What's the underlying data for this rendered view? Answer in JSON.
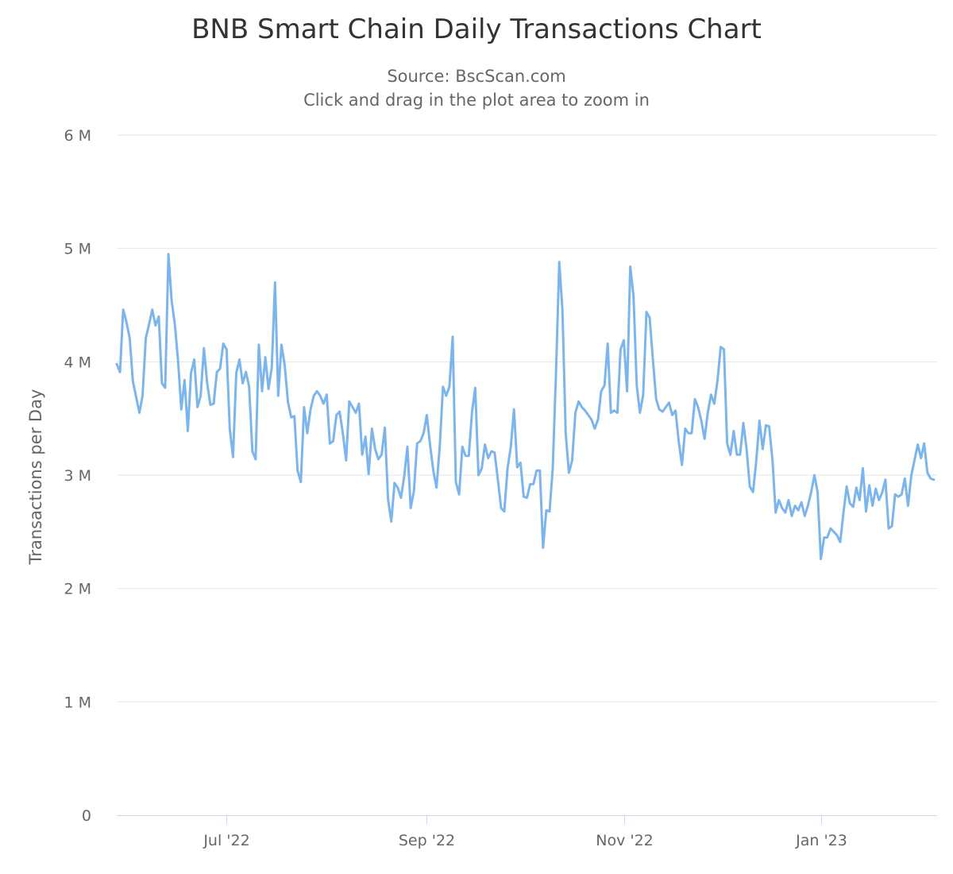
{
  "chart_data": {
    "type": "line",
    "title": "BNB Smart Chain Daily Transactions Chart",
    "subtitle": "Source: BscScan.com",
    "subtitle2": "Click and drag in the plot area to zoom in",
    "xlabel": "",
    "ylabel": "Transactions per Day",
    "ylim": [
      0,
      6000000
    ],
    "y_ticks": [
      {
        "value": 0,
        "label": "0"
      },
      {
        "value": 1000000,
        "label": "1 M"
      },
      {
        "value": 2000000,
        "label": "2 M"
      },
      {
        "value": 3000000,
        "label": "3 M"
      },
      {
        "value": 4000000,
        "label": "4 M"
      },
      {
        "value": 5000000,
        "label": "5 M"
      },
      {
        "value": 6000000,
        "label": "6 M"
      }
    ],
    "x_ticks": [
      {
        "date": "2022-07-01",
        "label": "Jul '22"
      },
      {
        "date": "2022-09-01",
        "label": "Sep '22"
      },
      {
        "date": "2022-11-01",
        "label": "Nov '22"
      },
      {
        "date": "2023-01-01",
        "label": "Jan '23"
      }
    ],
    "grid": true,
    "line_color": "#7cb5ec",
    "start_date": "2022-05-28",
    "interval": "daily",
    "series": [
      {
        "name": "Transactions per Day",
        "unit": "M",
        "values": [
          3.98,
          3.91,
          4.46,
          4.35,
          4.21,
          3.83,
          3.69,
          3.55,
          3.7,
          4.21,
          4.33,
          4.46,
          4.32,
          4.4,
          3.81,
          3.77,
          4.95,
          4.54,
          4.33,
          4.0,
          3.58,
          3.84,
          3.39,
          3.9,
          4.02,
          3.6,
          3.7,
          4.12,
          3.81,
          3.62,
          3.63,
          3.91,
          3.94,
          4.16,
          4.11,
          3.41,
          3.16,
          3.9,
          4.02,
          3.81,
          3.91,
          3.78,
          3.21,
          3.14,
          4.15,
          3.74,
          4.04,
          3.76,
          3.95,
          4.7,
          3.7,
          4.15,
          3.97,
          3.65,
          3.51,
          3.52,
          3.04,
          2.94,
          3.6,
          3.37,
          3.58,
          3.7,
          3.74,
          3.7,
          3.63,
          3.71,
          3.28,
          3.3,
          3.53,
          3.56,
          3.37,
          3.13,
          3.65,
          3.6,
          3.55,
          3.63,
          3.18,
          3.34,
          3.01,
          3.41,
          3.23,
          3.14,
          3.18,
          3.42,
          2.79,
          2.59,
          2.93,
          2.89,
          2.8,
          2.99,
          3.25,
          2.71,
          2.86,
          3.28,
          3.3,
          3.37,
          3.53,
          3.27,
          3.04,
          2.89,
          3.25,
          3.78,
          3.7,
          3.78,
          4.22,
          2.94,
          2.83,
          3.25,
          3.17,
          3.17,
          3.56,
          3.77,
          3.0,
          3.06,
          3.27,
          3.15,
          3.21,
          3.2,
          2.96,
          2.71,
          2.68,
          3.06,
          3.25,
          3.58,
          3.07,
          3.11,
          2.81,
          2.8,
          2.92,
          2.92,
          3.04,
          3.04,
          2.36,
          2.69,
          2.68,
          3.06,
          3.9,
          4.88,
          4.46,
          3.37,
          3.02,
          3.13,
          3.55,
          3.65,
          3.6,
          3.57,
          3.53,
          3.49,
          3.41,
          3.49,
          3.74,
          3.79,
          4.16,
          3.55,
          3.57,
          3.55,
          4.11,
          4.19,
          3.74,
          4.84,
          4.58,
          3.79,
          3.55,
          3.71,
          4.44,
          4.39,
          4.02,
          3.67,
          3.58,
          3.56,
          3.6,
          3.64,
          3.53,
          3.57,
          3.3,
          3.09,
          3.41,
          3.37,
          3.37,
          3.67,
          3.6,
          3.48,
          3.32,
          3.55,
          3.71,
          3.63,
          3.83,
          4.13,
          4.11,
          3.28,
          3.18,
          3.39,
          3.18,
          3.18,
          3.46,
          3.23,
          2.9,
          2.85,
          3.13,
          3.48,
          3.23,
          3.44,
          3.43,
          3.14,
          2.67,
          2.78,
          2.71,
          2.67,
          2.78,
          2.64,
          2.73,
          2.69,
          2.76,
          2.64,
          2.73,
          2.85,
          3.0,
          2.85,
          2.26,
          2.45,
          2.45,
          2.53,
          2.5,
          2.47,
          2.41,
          2.67,
          2.9,
          2.75,
          2.72,
          2.89,
          2.78,
          3.06,
          2.68,
          2.91,
          2.73,
          2.88,
          2.78,
          2.85,
          2.96,
          2.53,
          2.55,
          2.83,
          2.81,
          2.83,
          2.97,
          2.73,
          3.0,
          3.13,
          3.27,
          3.15,
          3.28,
          3.02,
          2.97,
          2.96
        ]
      }
    ]
  }
}
